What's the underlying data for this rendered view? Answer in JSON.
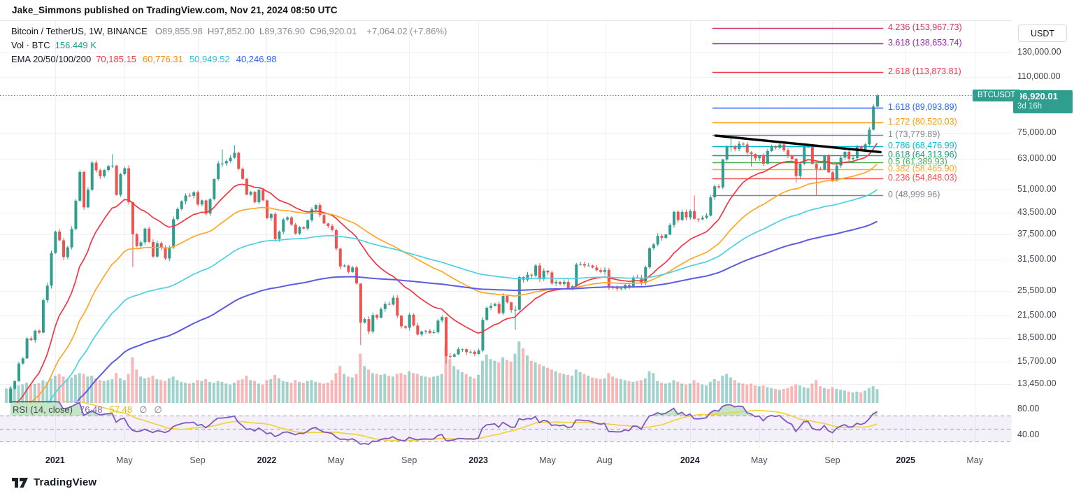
{
  "header": {
    "attribution": "Jake_Simmons published on TradingView.com, Nov 21, 2024 08:50 UTC"
  },
  "legend": {
    "symbol_title": "Bitcoin / TetherUS, 1W, BINANCE",
    "ohlc": [
      {
        "k": "O",
        "v": "89,855.98"
      },
      {
        "k": "H",
        "v": "97,852.00"
      },
      {
        "k": "L",
        "v": "89,376.90"
      },
      {
        "k": "C",
        "v": "96,920.01"
      }
    ],
    "change": "+7,064.02 (+7.86%)",
    "vol_label": "Vol · BTC",
    "vol_value": "156.449 K",
    "ema_label": "EMA 20/50/100/200",
    "ema_values": [
      {
        "text": "70,185.15",
        "color": "#f23645"
      },
      {
        "text": "60,776.31",
        "color": "#fb8c00"
      },
      {
        "text": "50,949.52",
        "color": "#26c6da"
      },
      {
        "text": "40,246.98",
        "color": "#2962ff"
      }
    ]
  },
  "rsi_legend": {
    "label": "RSI (14, close)",
    "value": "76.48",
    "ma_value": "57.48",
    "empty1": "∅",
    "empty2": "∅"
  },
  "price_axis": {
    "currency": "USDT",
    "ticks": [
      {
        "text": "130,000.00",
        "price": 130000
      },
      {
        "text": "110,000.00",
        "price": 110000
      },
      {
        "text": "75,000.00",
        "price": 75000
      },
      {
        "text": "63,000.00",
        "price": 63000
      },
      {
        "text": "51,000.00",
        "price": 51000
      },
      {
        "text": "43,500.00",
        "price": 43500
      },
      {
        "text": "37,500.00",
        "price": 37500
      },
      {
        "text": "31,500.00",
        "price": 31500
      },
      {
        "text": "25,500.00",
        "price": 25500
      },
      {
        "text": "21,500.00",
        "price": 21500
      },
      {
        "text": "18,500.00",
        "price": 18500
      },
      {
        "text": "15,700.00",
        "price": 15700
      },
      {
        "text": "13,450.00",
        "price": 13450
      }
    ],
    "badge": {
      "price": "96,920.01",
      "countdown": "3d 16h",
      "color": "#2f9e8e"
    },
    "symbol_chip": "BTCUSDT"
  },
  "rsi_axis": {
    "ticks": [
      {
        "text": "80.00",
        "value": 80
      },
      {
        "text": "40.00",
        "value": 40
      }
    ]
  },
  "time_axis": [
    {
      "label": "2021",
      "week": 12,
      "bold": true
    },
    {
      "label": "May",
      "week": 29,
      "bold": false
    },
    {
      "label": "Sep",
      "week": 47,
      "bold": false
    },
    {
      "label": "2022",
      "week": 64,
      "bold": true
    },
    {
      "label": "May",
      "week": 81,
      "bold": false
    },
    {
      "label": "Sep",
      "week": 99,
      "bold": false
    },
    {
      "label": "2023",
      "week": 116,
      "bold": true
    },
    {
      "label": "May",
      "week": 133,
      "bold": false
    },
    {
      "label": "Aug",
      "week": 147,
      "bold": false
    },
    {
      "label": "2024",
      "week": 168,
      "bold": true
    },
    {
      "label": "May",
      "week": 185,
      "bold": false
    },
    {
      "label": "Sep",
      "week": 203,
      "bold": false
    },
    {
      "label": "2025",
      "week": 221,
      "bold": true
    },
    {
      "label": "May",
      "week": 238,
      "bold": false
    }
  ],
  "footer": {
    "brand": "TradingView"
  },
  "chart_data": {
    "type": "candlestick",
    "symbol": "BTCUSDT",
    "exchange": "BINANCE",
    "timeframe": "1W",
    "scale": "log",
    "first_week": "2020-10-12",
    "closes": [
      11500,
      13050,
      13750,
      15500,
      16050,
      18400,
      18200,
      19400,
      19150,
      23900,
      26400,
      33000,
      38200,
      36000,
      32100,
      34300,
      38900,
      47200,
      57400,
      45100,
      50900,
      61200,
      58100,
      55800,
      58200,
      59800,
      60000,
      49100,
      56600,
      58900,
      46700,
      37500,
      34600,
      35500,
      39000,
      35600,
      32200,
      35300,
      34200,
      31800,
      34300,
      41600,
      44600,
      47000,
      48900,
      48800,
      50000,
      46000,
      47300,
      43200,
      47700,
      54700,
      60900,
      60900,
      61900,
      63300,
      65500,
      58700,
      54800,
      49200,
      50100,
      46700,
      50800,
      47300,
      41900,
      43100,
      36300,
      38200,
      41500,
      42100,
      40100,
      37700,
      39400,
      39000,
      41300,
      44500,
      45800,
      42800,
      40400,
      39700,
      38600,
      34000,
      30100,
      30300,
      29000,
      29900,
      26800,
      20500,
      21000,
      19300,
      21600,
      21200,
      22500,
      23300,
      23200,
      24300,
      21500,
      20000,
      19800,
      21650,
      20100,
      18900,
      19300,
      19400,
      19100,
      19200,
      20800,
      21300,
      16300,
      16250,
      16500,
      17100,
      17100,
      16750,
      16800,
      16550,
      16950,
      20900,
      22700,
      23000,
      23300,
      21860,
      24600,
      23550,
      22350,
      22400,
      28000,
      27500,
      28450,
      28300,
      30300,
      27600,
      29250,
      28900,
      26800,
      27100,
      26700,
      27100,
      25900,
      26300,
      30500,
      30600,
      30300,
      30300,
      29900,
      29350,
      29000,
      29400,
      26100,
      26000,
      25850,
      25900,
      26550,
      26250,
      27950,
      27900,
      26850,
      29950,
      34100,
      35000,
      37100,
      36600,
      37450,
      39950,
      43750,
      41350,
      43700,
      42100,
      43950,
      41700,
      41550,
      42000,
      42600,
      48300,
      52100,
      51700,
      62500,
      68300,
      68400,
      67200,
      69650,
      69350,
      65650,
      64950,
      63100,
      64000,
      60800,
      66250,
      68500,
      67750,
      69300,
      66650,
      64250,
      62850,
      55850,
      60800,
      68150,
      68250,
      60700,
      58700,
      58450,
      64100,
      57300,
      54150,
      60000,
      63350,
      65900,
      62800,
      63200,
      68400,
      67000,
      69400,
      76700,
      89850,
      96920.01
    ],
    "volumes_k": [
      165,
      180,
      175,
      200,
      210,
      230,
      205,
      215,
      225,
      260,
      240,
      280,
      310,
      330,
      300,
      270,
      290,
      320,
      340,
      330,
      300,
      310,
      280,
      260,
      250,
      260,
      270,
      340,
      280,
      260,
      330,
      520,
      380,
      300,
      280,
      290,
      310,
      270,
      260,
      250,
      280,
      300,
      260,
      240,
      230,
      220,
      230,
      260,
      250,
      270,
      240,
      230,
      250,
      240,
      220,
      210,
      230,
      260,
      270,
      310,
      260,
      250,
      220,
      210,
      260,
      270,
      320,
      280,
      250,
      240,
      230,
      260,
      240,
      230,
      250,
      260,
      240,
      230,
      220,
      230,
      260,
      340,
      420,
      330,
      300,
      290,
      330,
      560,
      420,
      380,
      340,
      330,
      320,
      330,
      310,
      300,
      330,
      340,
      320,
      360,
      340,
      330,
      310,
      300,
      290,
      300,
      310,
      330,
      640,
      500,
      420,
      380,
      350,
      330,
      300,
      280,
      320,
      480,
      550,
      500,
      480,
      460,
      520,
      490,
      470,
      560,
      700,
      620,
      540,
      480,
      460,
      440,
      420,
      400,
      380,
      360,
      340,
      330,
      320,
      310,
      380,
      350,
      330,
      310,
      290,
      280,
      270,
      280,
      340,
      300,
      280,
      270,
      260,
      250,
      240,
      250,
      260,
      280,
      360,
      340,
      250,
      230,
      220,
      230,
      260,
      240,
      220,
      210,
      220,
      260,
      230,
      210,
      200,
      240,
      270,
      250,
      310,
      330,
      290,
      260,
      230,
      220,
      210,
      220,
      200,
      190,
      200,
      180,
      170,
      160,
      150,
      160,
      170,
      190,
      210,
      200,
      180,
      170,
      220,
      260,
      190,
      170,
      160,
      180,
      160,
      150,
      140,
      130,
      120,
      130,
      120,
      140,
      170,
      190,
      156.449
    ],
    "wick_overrides": {
      "26": [
        64850,
        59000
      ],
      "31": [
        46800,
        30000
      ],
      "53": [
        67000,
        59500
      ],
      "56": [
        69000,
        62900
      ],
      "87": [
        25600,
        17600
      ],
      "108": [
        21000,
        15500
      ],
      "125": [
        23000,
        19550
      ],
      "169": [
        48900,
        41400
      ],
      "178": [
        73780,
        66050
      ],
      "183": [
        66200,
        59600
      ],
      "194": [
        63200,
        53500
      ],
      "199": [
        61200,
        49000
      ]
    },
    "last_candle": {
      "open": 89855.98,
      "high": 97852.0,
      "low": 89376.9,
      "close": 96920.01
    },
    "current_price": 96920.01,
    "candle_colors": {
      "up": "#2f9e8e",
      "down": "#ef5350"
    },
    "volume_colors": {
      "up": "rgba(47,158,142,0.45)",
      "down": "rgba(239,83,80,0.42)"
    },
    "emas": [
      {
        "period": 20,
        "seed": 11200,
        "color": "#f23645",
        "width": 1.7
      },
      {
        "period": 50,
        "seed": 10800,
        "color": "#ffa726",
        "width": 1.7
      },
      {
        "period": 100,
        "seed": 10200,
        "color": "#4dd0e1",
        "width": 1.7
      },
      {
        "period": 200,
        "seed": 9000,
        "color": "#5b5ce2",
        "width": 2.0
      }
    ],
    "fib_levels": [
      {
        "label": "4.236 (153,967.73)",
        "price": 153967.73,
        "color": "#cf3360"
      },
      {
        "label": "3.618 (138,653.74)",
        "price": 138653.74,
        "color": "#9c27b0"
      },
      {
        "label": "2.618 (113,873.81)",
        "price": 113873.81,
        "color": "#f23645"
      },
      {
        "label": "1.618 (89,093.89)",
        "price": 89093.89,
        "color": "#2962ff"
      },
      {
        "label": "1.272 (80,520.03)",
        "price": 80520.03,
        "color": "#ff9800"
      },
      {
        "label": "1 (73,779.89)",
        "price": 73779.89,
        "color": "#808591"
      },
      {
        "label": "0.786 (68,476.99)",
        "price": 68476.99,
        "color": "#00bcd4"
      },
      {
        "label": "0.618 (64,313.96)",
        "price": 64313.96,
        "color": "#1b9e77"
      },
      {
        "label": "0.5 (61,389.93)",
        "price": 61389.93,
        "color": "#4caf50"
      },
      {
        "label": "0.382 (58,465.90)",
        "price": 58465.9,
        "color": "#ffa726"
      },
      {
        "label": "0.236 (54,848.03)",
        "price": 54848.03,
        "color": "#ef5350"
      },
      {
        "label": "0 (48,999.96)",
        "price": 48999.96,
        "color": "#808591"
      }
    ],
    "fib_range_weeks": [
      173.5,
      215.5
    ],
    "trendline": {
      "from": {
        "week": 174.3,
        "price": 73600
      },
      "to": {
        "week": 214.8,
        "price": 65800
      },
      "color": "#000000",
      "width": 3.4
    },
    "rsi": {
      "period": 14,
      "color": "#7e57c2",
      "ma_color": "#f3d13f",
      "band": [
        30,
        70
      ],
      "band_fill": "rgba(126,87,194,0.09)",
      "overbought_fill": "rgba(102,187,106,0.38)",
      "last_value": 76.48,
      "last_ma": 57.48
    }
  }
}
